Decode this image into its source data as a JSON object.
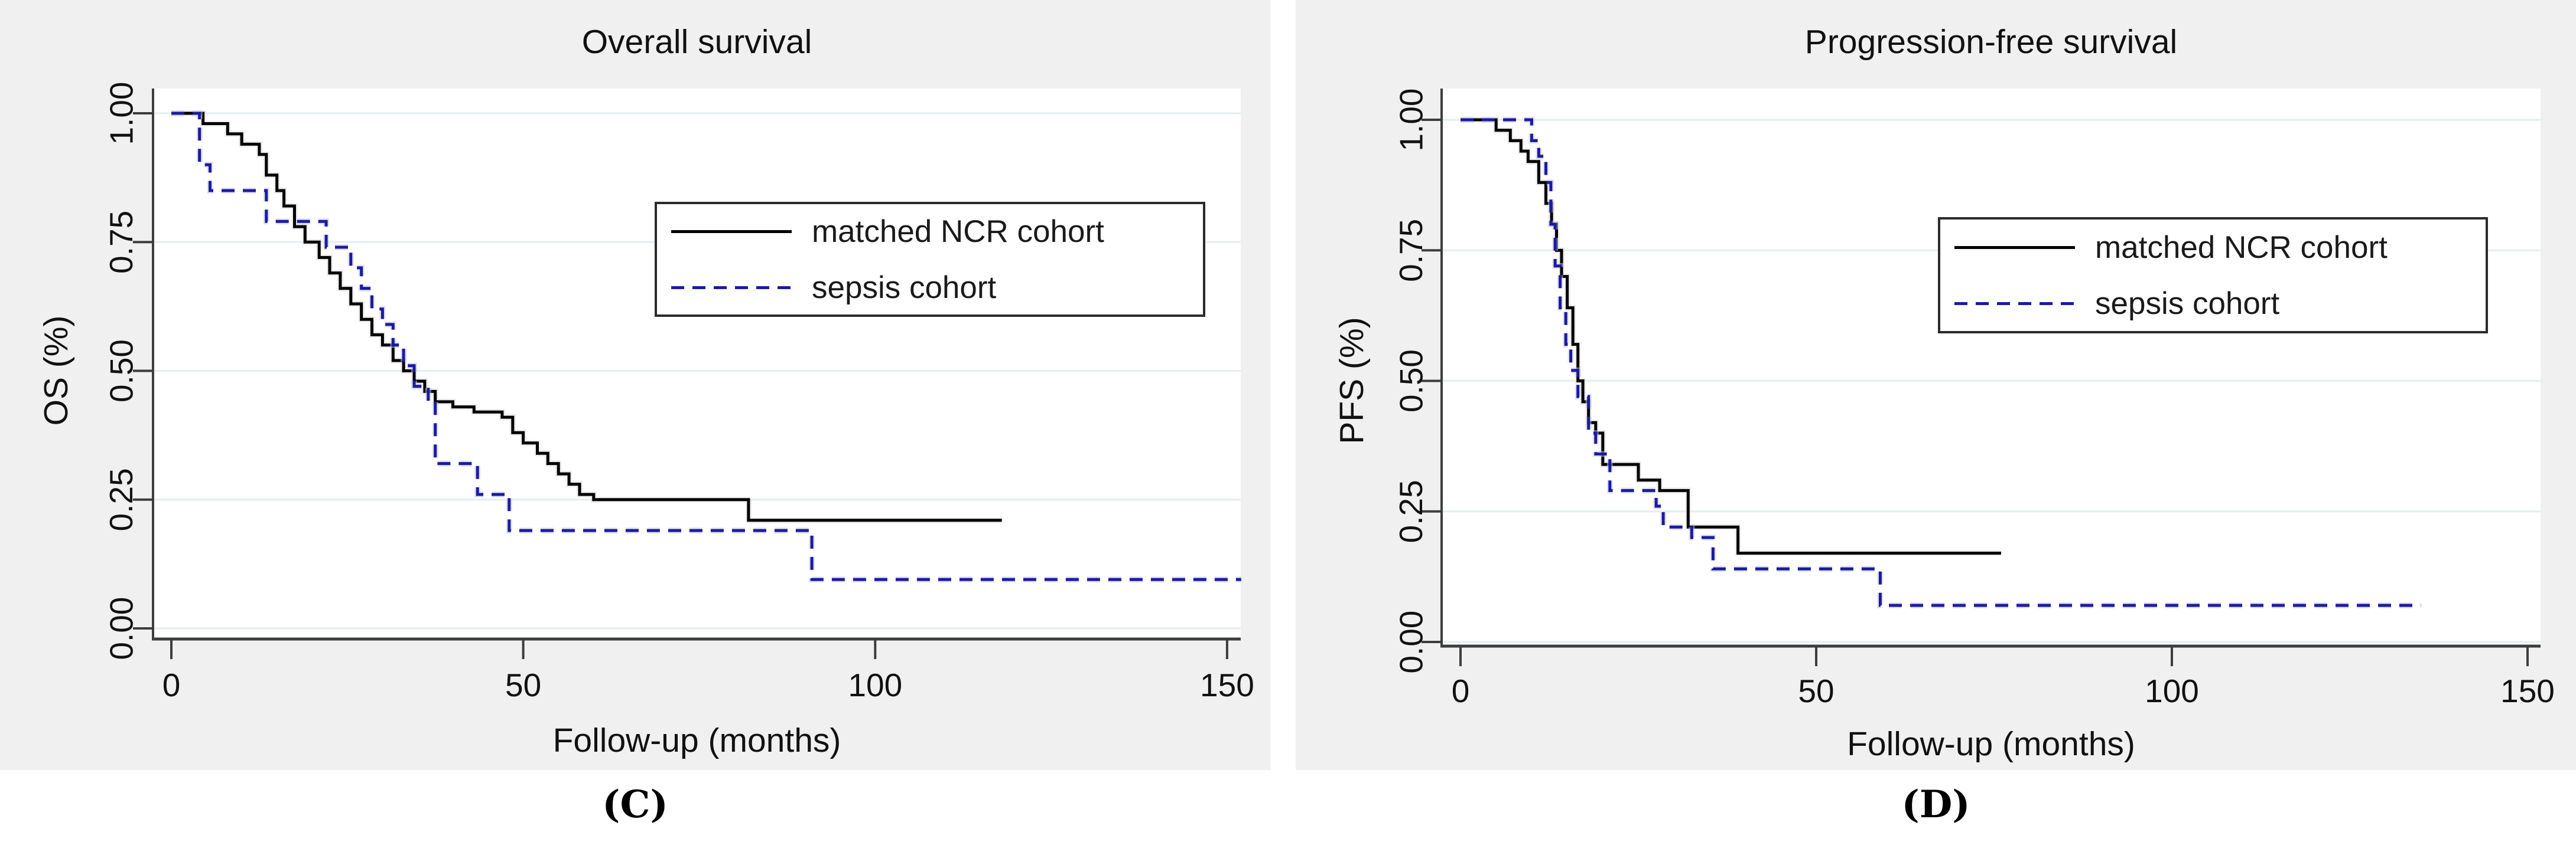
{
  "chart_data": [
    {
      "type": "line",
      "variant": "kaplan-meier-step",
      "panel_label": "(C)",
      "title": "Overall survival",
      "xlabel": "Follow-up (months)",
      "ylabel": "OS (%)",
      "xlim": [
        0,
        155
      ],
      "ylim": [
        0,
        1
      ],
      "xticks": [
        0,
        50,
        100,
        150
      ],
      "yticks": [
        1.0,
        0.75,
        0.5,
        0.25,
        0.0
      ],
      "ytick_labels": [
        "1.00",
        "0.75",
        "0.50",
        "0.25",
        "0.00"
      ],
      "grid": "horizontal",
      "legend_position": "inside-upper-right",
      "series": [
        {
          "name": "matched NCR cohort",
          "line": "solid",
          "color": "#000000",
          "points": [
            [
              0,
              1.0
            ],
            [
              4.5,
              0.98
            ],
            [
              8,
              0.96
            ],
            [
              10,
              0.94
            ],
            [
              12.5,
              0.92
            ],
            [
              13.5,
              0.88
            ],
            [
              15,
              0.85
            ],
            [
              16,
              0.82
            ],
            [
              17.5,
              0.78
            ],
            [
              19,
              0.75
            ],
            [
              21,
              0.72
            ],
            [
              22.5,
              0.69
            ],
            [
              24,
              0.66
            ],
            [
              25.5,
              0.63
            ],
            [
              27,
              0.6
            ],
            [
              28.5,
              0.57
            ],
            [
              30,
              0.55
            ],
            [
              31.5,
              0.52
            ],
            [
              33,
              0.5
            ],
            [
              34.5,
              0.48
            ],
            [
              36,
              0.46
            ],
            [
              37.5,
              0.44
            ],
            [
              40,
              0.43
            ],
            [
              43,
              0.42
            ],
            [
              47,
              0.41
            ],
            [
              48.5,
              0.38
            ],
            [
              50,
              0.36
            ],
            [
              52,
              0.34
            ],
            [
              53.5,
              0.32
            ],
            [
              55,
              0.3
            ],
            [
              56.5,
              0.28
            ],
            [
              58,
              0.26
            ],
            [
              60,
              0.25
            ],
            [
              82,
              0.21
            ],
            [
              118,
              0.21
            ]
          ]
        },
        {
          "name": "sepsis cohort",
          "line": "dashed",
          "color": "#1b1b9e",
          "points": [
            [
              0,
              1.0
            ],
            [
              4,
              0.9
            ],
            [
              5.5,
              0.85
            ],
            [
              13.5,
              0.79
            ],
            [
              22,
              0.74
            ],
            [
              25.5,
              0.7
            ],
            [
              27,
              0.66
            ],
            [
              28.5,
              0.62
            ],
            [
              30,
              0.59
            ],
            [
              31.5,
              0.55
            ],
            [
              33,
              0.51
            ],
            [
              34.5,
              0.47
            ],
            [
              36.5,
              0.44
            ],
            [
              37.5,
              0.32
            ],
            [
              43.5,
              0.26
            ],
            [
              48,
              0.19
            ],
            [
              91,
              0.095
            ],
            [
              152,
              0.095
            ]
          ]
        }
      ]
    },
    {
      "type": "line",
      "variant": "kaplan-meier-step",
      "panel_label": "(D)",
      "title": "Progression-free survival",
      "xlabel": "Follow-up (months)",
      "ylabel": "PFS (%)",
      "xlim": [
        0,
        155
      ],
      "ylim": [
        0,
        1
      ],
      "xticks": [
        0,
        50,
        100,
        150
      ],
      "yticks": [
        1.0,
        0.75,
        0.5,
        0.25,
        0.0
      ],
      "ytick_labels": [
        "1.00",
        "0.75",
        "0.50",
        "0.25",
        "0.00"
      ],
      "grid": "horizontal",
      "legend_position": "inside-upper-right",
      "series": [
        {
          "name": "matched NCR cohort",
          "line": "solid",
          "color": "#000000",
          "points": [
            [
              0,
              1.0
            ],
            [
              5,
              0.98
            ],
            [
              7,
              0.96
            ],
            [
              8.5,
              0.94
            ],
            [
              9.5,
              0.92
            ],
            [
              11,
              0.88
            ],
            [
              12,
              0.84
            ],
            [
              12.8,
              0.8
            ],
            [
              13.5,
              0.75
            ],
            [
              14.2,
              0.7
            ],
            [
              15,
              0.64
            ],
            [
              15.8,
              0.57
            ],
            [
              16.5,
              0.5
            ],
            [
              17.2,
              0.46
            ],
            [
              18,
              0.42
            ],
            [
              19,
              0.4
            ],
            [
              20,
              0.34
            ],
            [
              25,
              0.31
            ],
            [
              28,
              0.29
            ],
            [
              32,
              0.22
            ],
            [
              39,
              0.17
            ],
            [
              76,
              0.17
            ]
          ]
        },
        {
          "name": "sepsis cohort",
          "line": "dashed",
          "color": "#1b1b9e",
          "points": [
            [
              0,
              1.0
            ],
            [
              10,
              0.96
            ],
            [
              11,
              0.93
            ],
            [
              12,
              0.88
            ],
            [
              12.7,
              0.8
            ],
            [
              13.3,
              0.72
            ],
            [
              14,
              0.64
            ],
            [
              14.8,
              0.57
            ],
            [
              15.5,
              0.52
            ],
            [
              16.5,
              0.47
            ],
            [
              18,
              0.4
            ],
            [
              19,
              0.36
            ],
            [
              21,
              0.29
            ],
            [
              27.5,
              0.26
            ],
            [
              28.5,
              0.22
            ],
            [
              32.5,
              0.2
            ],
            [
              35.5,
              0.14
            ],
            [
              59,
              0.07
            ],
            [
              135,
              0.07
            ]
          ]
        }
      ]
    }
  ],
  "style": {
    "panel_background": "#f0f0f0",
    "plot_background": "#ffffff",
    "grid_color": "#e4eef0",
    "axis_color": "#3d3d3d",
    "solid_series_color": "#000000",
    "dashed_series_color": "#1b1b9e"
  }
}
